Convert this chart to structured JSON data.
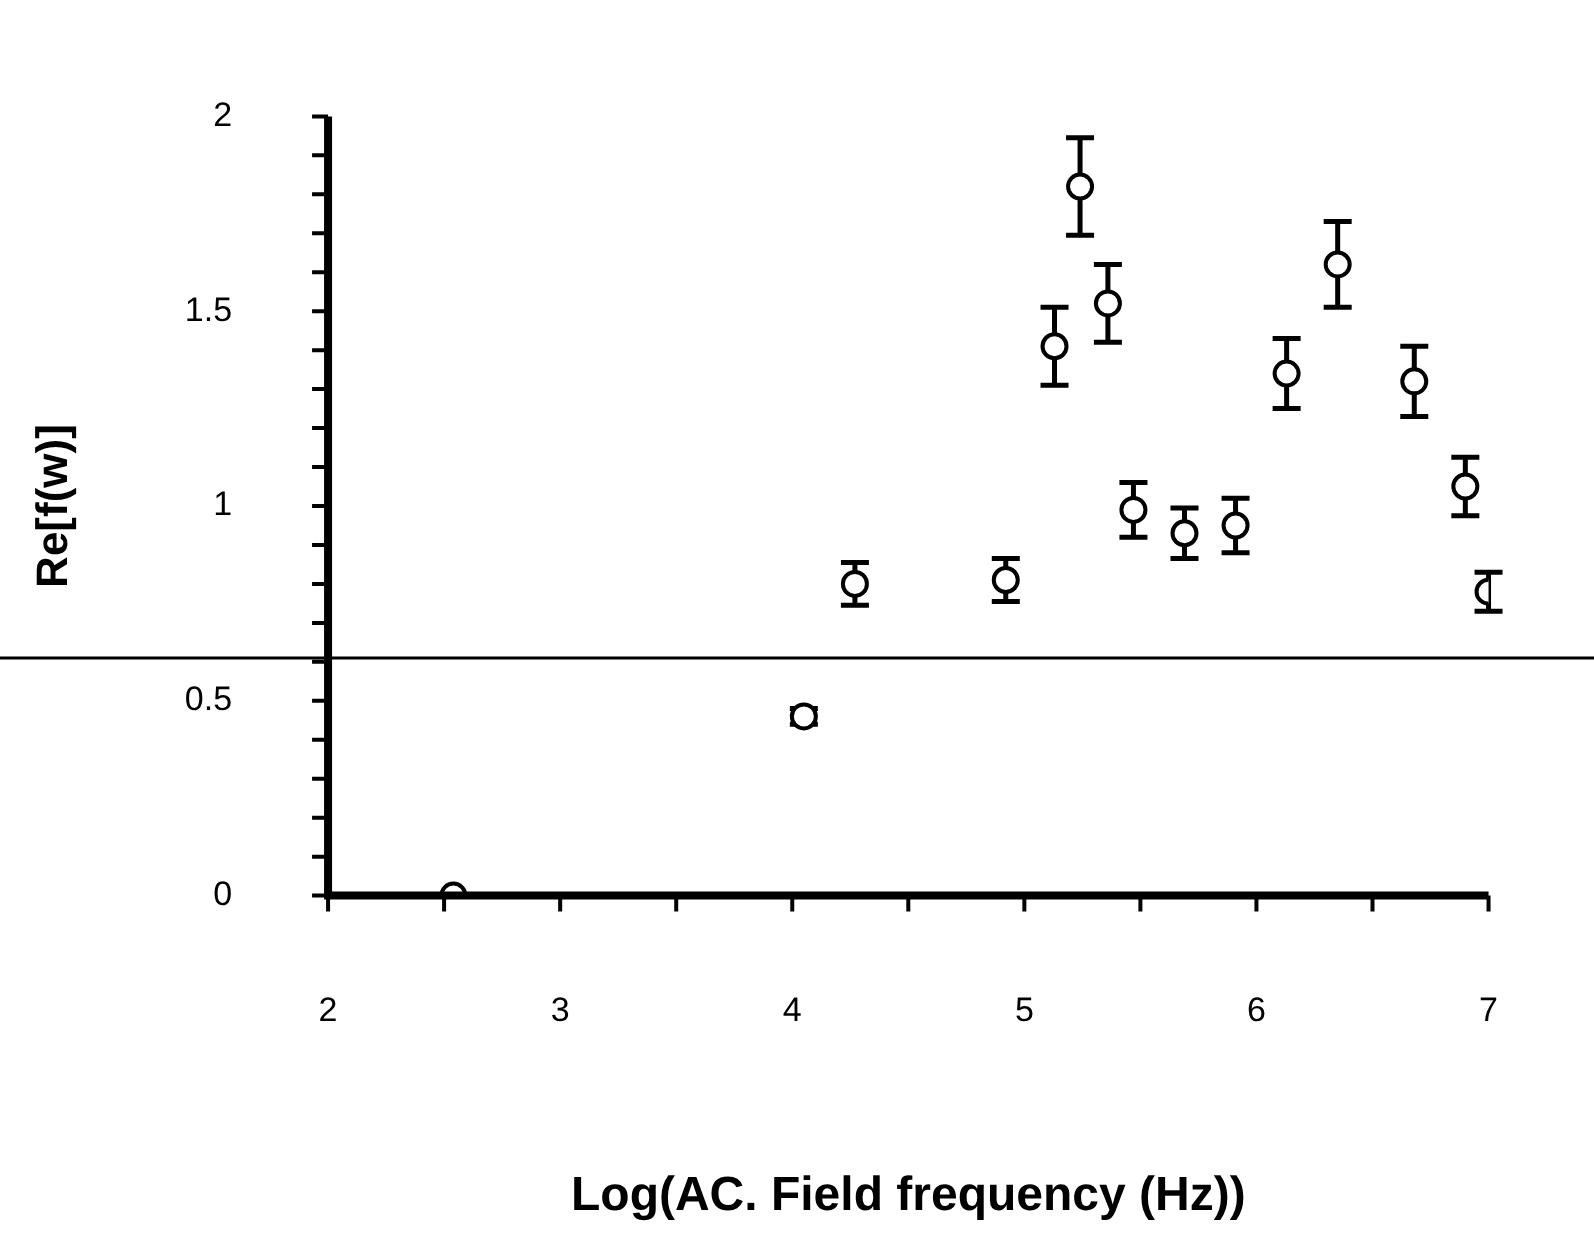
{
  "chart_data": {
    "type": "scatter",
    "xlabel": "Log(AC. Field frequency (Hz))",
    "ylabel": "Re[f(w)]",
    "xlim": [
      2,
      7
    ],
    "ylim": [
      0,
      2
    ],
    "xticks": [
      2,
      {
        "value": 2.5,
        "label": null
      },
      3,
      {
        "value": 3.5,
        "label": null
      },
      4,
      {
        "value": 4.5,
        "label": null
      },
      5,
      {
        "value": 5.5,
        "label": null
      },
      6,
      {
        "value": 6.5,
        "label": null
      },
      7
    ],
    "yticks": [
      0,
      {
        "value": 0.1,
        "label": null
      },
      {
        "value": 0.2,
        "label": null
      },
      {
        "value": 0.3,
        "label": null
      },
      {
        "value": 0.4,
        "label": null
      },
      0.5,
      {
        "value": 0.6,
        "label": null
      },
      {
        "value": 0.7,
        "label": null
      },
      {
        "value": 0.8,
        "label": null
      },
      {
        "value": 0.9,
        "label": null
      },
      1,
      {
        "value": 1.1,
        "label": null
      },
      {
        "value": 1.2,
        "label": null
      },
      {
        "value": 1.3,
        "label": null
      },
      {
        "value": 1.4,
        "label": null
      },
      1.5,
      {
        "value": 1.6,
        "label": null
      },
      {
        "value": 1.7,
        "label": null
      },
      {
        "value": 1.8,
        "label": null
      },
      {
        "value": 1.9,
        "label": null
      },
      2
    ],
    "grid": false,
    "legend": false,
    "marker": "circle",
    "ref_lines": [
      {
        "axis": "y",
        "value": 0.61,
        "color": "#000000"
      }
    ],
    "series": [
      {
        "color": "#000000",
        "x": [
          2.54,
          4.05,
          4.27,
          4.92,
          5.13,
          5.24,
          5.36,
          5.47,
          5.69,
          5.91,
          6.13,
          6.35,
          6.68,
          6.9,
          7.0
        ],
        "values": [
          0.0,
          0.46,
          0.8,
          0.81,
          1.41,
          1.82,
          1.52,
          0.99,
          0.93,
          0.95,
          1.34,
          1.62,
          1.32,
          1.05,
          0.78
        ],
        "errors": [
          null,
          0.02,
          0.055,
          0.055,
          0.1,
          0.125,
          0.1,
          0.07,
          0.065,
          0.07,
          0.09,
          0.11,
          0.09,
          0.075,
          0.05
        ]
      }
    ]
  }
}
